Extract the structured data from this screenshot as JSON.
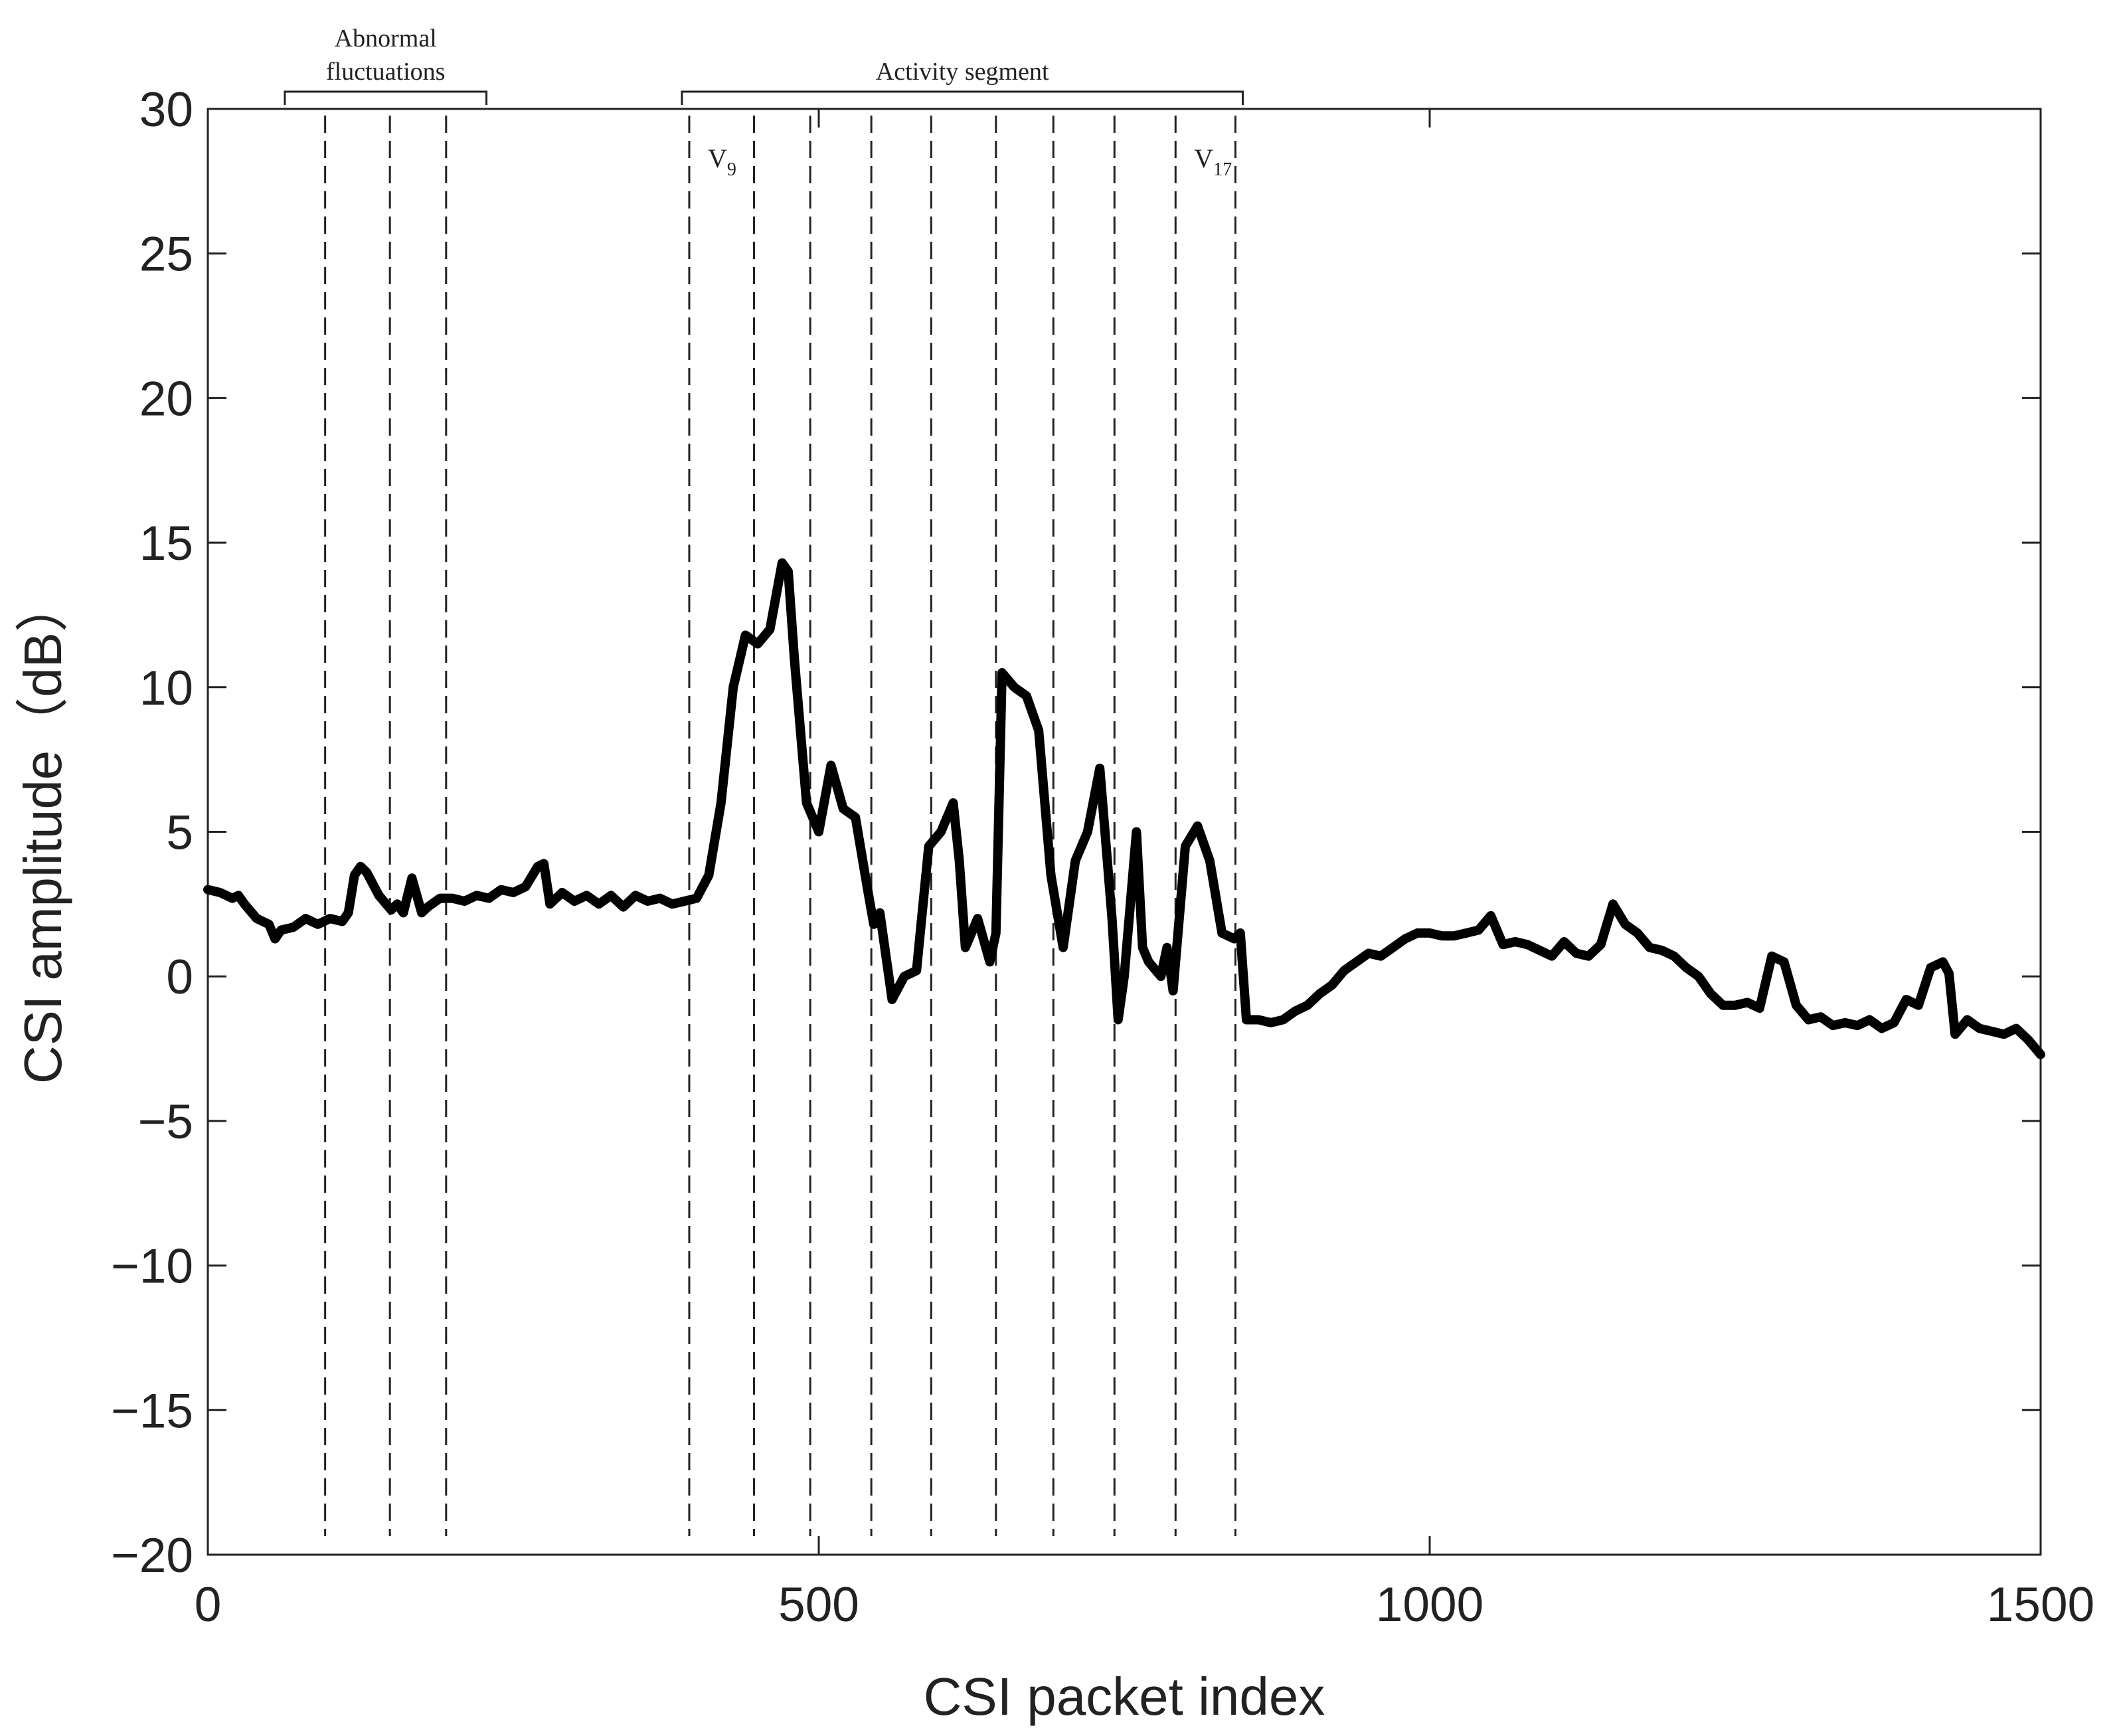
{
  "chart_data": {
    "type": "line",
    "xlabel": "CSI packet index",
    "ylabel": "CSI amplitude（dB）",
    "xlim": [
      0,
      1500
    ],
    "ylim": [
      -20,
      30
    ],
    "xticks": [
      0,
      500,
      1000,
      1500
    ],
    "yticks": [
      {
        "value": -20,
        "label": "−20"
      },
      {
        "value": -15,
        "label": "−15"
      },
      {
        "value": -10,
        "label": "−10"
      },
      {
        "value": -5,
        "label": "−5"
      },
      0,
      5,
      10,
      15,
      20,
      25,
      30
    ],
    "color": "#000000",
    "x": [
      0,
      10,
      20,
      25,
      30,
      40,
      50,
      55,
      60,
      70,
      80,
      90,
      100,
      110,
      115,
      120,
      125,
      130,
      140,
      150,
      155,
      160,
      167,
      175,
      180,
      190,
      200,
      210,
      220,
      230,
      240,
      250,
      260,
      270,
      275,
      280,
      290,
      300,
      310,
      320,
      330,
      340,
      350,
      360,
      370,
      380,
      390,
      400,
      410,
      420,
      430,
      440,
      450,
      460,
      470,
      475,
      480,
      490,
      500,
      510,
      520,
      530,
      540,
      545,
      550,
      560,
      570,
      580,
      590,
      600,
      610,
      615,
      620,
      630,
      640,
      645,
      650,
      660,
      670,
      680,
      690,
      700,
      710,
      720,
      730,
      740,
      745,
      750,
      760,
      765,
      770,
      780,
      785,
      790,
      800,
      810,
      820,
      830,
      840,
      845,
      850,
      860,
      870,
      880,
      890,
      900,
      910,
      920,
      930,
      940,
      950,
      960,
      970,
      980,
      990,
      1000,
      1010,
      1020,
      1030,
      1040,
      1050,
      1060,
      1070,
      1080,
      1090,
      1100,
      1110,
      1120,
      1130,
      1140,
      1150,
      1160,
      1170,
      1180,
      1190,
      1200,
      1210,
      1220,
      1230,
      1240,
      1250,
      1260,
      1270,
      1280,
      1290,
      1300,
      1310,
      1320,
      1330,
      1340,
      1350,
      1360,
      1370,
      1380,
      1390,
      1400,
      1410,
      1420,
      1425,
      1430,
      1440,
      1450,
      1460,
      1470,
      1480,
      1490,
      1500
    ],
    "values": [
      3,
      2.9,
      2.7,
      2.8,
      2.5,
      2.0,
      1.8,
      1.3,
      1.6,
      1.7,
      2.0,
      1.8,
      2.0,
      1.9,
      2.2,
      3.5,
      3.8,
      3.6,
      2.8,
      2.3,
      2.5,
      2.2,
      3.4,
      2.2,
      2.4,
      2.7,
      2.7,
      2.6,
      2.8,
      2.7,
      3.0,
      2.9,
      3.1,
      3.8,
      3.9,
      2.5,
      2.9,
      2.6,
      2.8,
      2.5,
      2.8,
      2.4,
      2.8,
      2.6,
      2.7,
      2.5,
      2.6,
      2.7,
      3.5,
      6,
      10,
      11.8,
      11.5,
      12,
      14.3,
      14,
      11,
      6,
      5,
      7.3,
      5.8,
      5.5,
      3,
      1.8,
      2.2,
      -0.8,
      0,
      0.2,
      4.5,
      5,
      6,
      4,
      1,
      2,
      0.5,
      1.5,
      10.5,
      10,
      9.7,
      8.5,
      3.5,
      1,
      4,
      5,
      7.2,
      2,
      -1.5,
      0,
      5,
      1,
      0.5,
      0,
      1,
      -0.5,
      4.5,
      5.2,
      4,
      1.5,
      1.3,
      1.5,
      -1.5,
      -1.5,
      -1.6,
      -1.5,
      -1.2,
      -1,
      -0.6,
      -0.3,
      0.2,
      0.5,
      0.8,
      0.7,
      1.0,
      1.3,
      1.5,
      1.5,
      1.4,
      1.4,
      1.5,
      1.6,
      2.1,
      1.1,
      1.2,
      1.1,
      0.9,
      0.7,
      1.2,
      0.8,
      0.7,
      1.1,
      2.5,
      1.8,
      1.5,
      1.0,
      0.9,
      0.7,
      0.3,
      0,
      -0.6,
      -1.0,
      -1.0,
      -0.9,
      -1.1,
      0.7,
      0.5,
      -1.0,
      -1.5,
      -1.4,
      -1.7,
      -1.6,
      -1.7,
      -1.5,
      -1.8,
      -1.6,
      -0.8,
      -1.0,
      0.3,
      0.5,
      0.1,
      -2.0,
      -1.5,
      -1.8,
      -1.9,
      -2.0,
      -1.8,
      -2.2,
      -2.7
    ],
    "vlines": [
      {
        "x": 96
      },
      {
        "x": 149
      },
      {
        "x": 195
      },
      {
        "x": 394,
        "label": "V",
        "subscript": "9"
      },
      {
        "x": 447
      },
      {
        "x": 493
      },
      {
        "x": 543
      },
      {
        "x": 592
      },
      {
        "x": 645
      },
      {
        "x": 692
      },
      {
        "x": 742
      },
      {
        "x": 792,
        "label": "V",
        "subscript": "17"
      },
      {
        "x": 841
      }
    ],
    "annotations": [
      {
        "lines": [
          "Abnormal",
          "fluctuations"
        ],
        "x": [
          63,
          228
        ]
      },
      {
        "lines": [
          "Activity segment"
        ],
        "x": [
          388,
          847
        ]
      }
    ]
  }
}
